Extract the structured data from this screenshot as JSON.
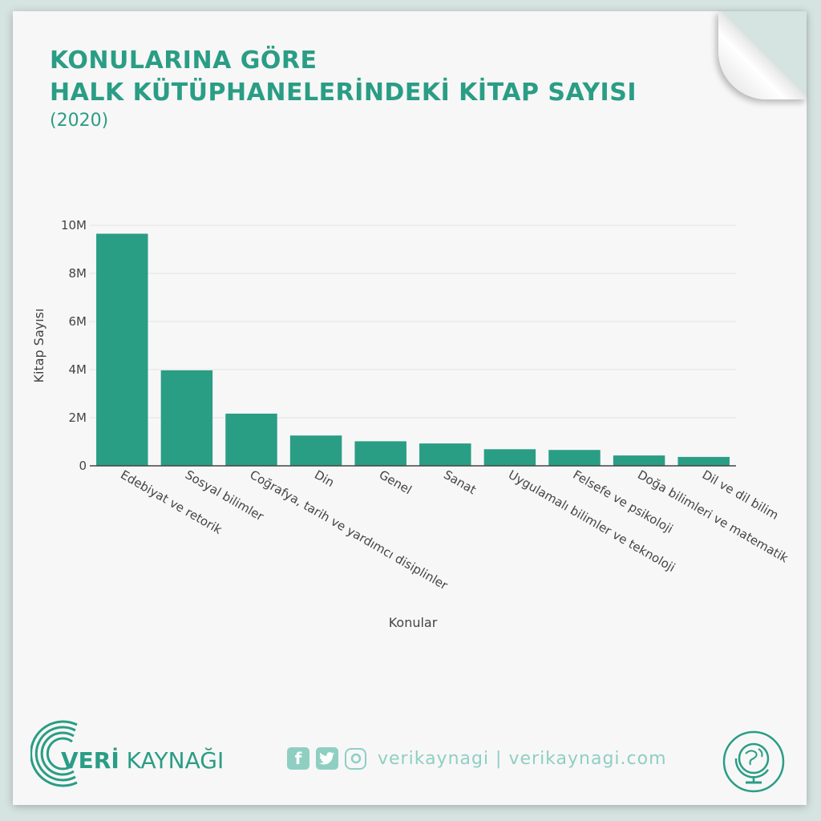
{
  "title": {
    "line1": "KONULARINA GÖRE",
    "line2": "HALK KÜTÜPHANELERİNDEKİ KİTAP SAYISI",
    "line3": "(2020)"
  },
  "colors": {
    "accent": "#2a9d85",
    "light_accent": "#8fcfc2",
    "bar": "#2a9d85"
  },
  "chart_data": {
    "type": "bar",
    "categories": [
      "Edebiyat ve retorik",
      "Sosyal bilimler",
      "Coğrafya, tarih ve yardımcı disiplinler",
      "Din",
      "Genel",
      "Sanat",
      "Uygulamalı bilimler ve teknoloji",
      "Felsefe ve psikoloji",
      "Doğa bilimleri ve matematik",
      "Dil ve dil bilim"
    ],
    "values": [
      9650000,
      3970000,
      2170000,
      1260000,
      1020000,
      930000,
      690000,
      660000,
      430000,
      370000
    ],
    "xlabel": "Konular",
    "ylabel": "Kitap Sayısı",
    "ylim": [
      0,
      10000000
    ],
    "yticks": [
      0,
      2000000,
      4000000,
      6000000,
      8000000,
      10000000
    ],
    "ytick_labels": [
      "0",
      "2M",
      "4M",
      "6M",
      "8M",
      "10M"
    ],
    "grid": true
  },
  "footer": {
    "logo_bold": "VERİ",
    "logo_rest": " KAYNAĞI",
    "social_icons": [
      "facebook-icon",
      "twitter-icon",
      "instagram-icon"
    ],
    "social_text": "verikaynagi | verikaynagi.com",
    "badge_icon": "globe-icon"
  }
}
